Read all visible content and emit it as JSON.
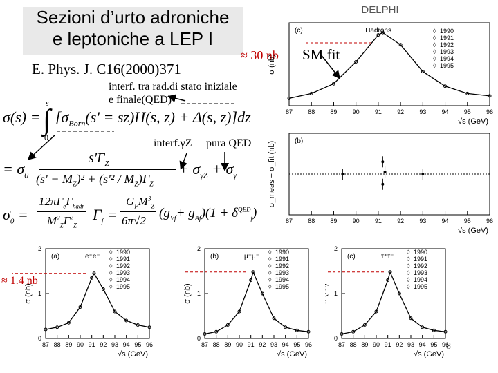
{
  "slide": {
    "title_line1": "Sezioni d’urto adroniche",
    "title_line2": "e leptoniche a LEP I",
    "reference": "E. Phys. J. C16(2000)371",
    "annot_30nb": "≈ 30 nb",
    "annot_smfit": "SM fit",
    "annot_isr_line1": "interf. tra rad.di stato iniziale",
    "annot_isr_line2": "e finale(QED)",
    "annot_interf": "interf.γZ",
    "annot_pure_qed": "pura QED",
    "annot_14nb": "≈ 1.4 nb",
    "page_number": "8"
  },
  "formula": {
    "sigma_s": "σ(s) =",
    "integral_upper": "s",
    "integral_lower": "0",
    "integrand_1": "[σ",
    "born_sub": "Born",
    "integrand_2": "(s' = sz)H(s, z) + Δ(s, z)]dz",
    "line2_a": "= σ",
    "line2_sub0": "0",
    "line2_num": "s'Γ",
    "line2_den": "(s' − M",
    "line2_den2": ")² + (s'² / M",
    "line2_den3": ")Γ",
    "line2_tail": "+ σ",
    "sub_gz": "γZ",
    "line2_tail2": "+ σ",
    "sub_g": "γ",
    "sigma0_lhs": "σ",
    "sigma0_num": "12πΓ",
    "sigma0_num_sub": "e",
    "sigma0_num2": "Γ",
    "sigma0_num_sub2": "hadr",
    "sigma0_den": "M",
    "sigma0_den_b": "Γ",
    "gamma_f_lhs": "Γ",
    "gamma_f_sub": "f",
    "gamma_num": "G",
    "gamma_num_sub": "F",
    "gamma_num2": "M",
    "gamma_den": "6π√2",
    "gamma_tail": "(g",
    "gamma_tail_sub1": "Vf",
    "gamma_tail_mid": "+ g",
    "gamma_tail_sub2": "Af",
    "gamma_tail_end": ")(1 + δ",
    "gamma_tail_sup": "QED",
    "gamma_tail_sub3": "f",
    "gamma_close": ")"
  },
  "chart_data": [
    {
      "type": "scatter",
      "panel": "(c)",
      "experiment": "DELPHI",
      "label": "Hadrons",
      "ylabel": "σ (nb)",
      "xlabel": "√s (GeV)",
      "xlim": [
        87,
        96
      ],
      "x_ticks": [
        "87",
        "88",
        "89",
        "90",
        "91",
        "92",
        "93",
        "94",
        "95",
        "96"
      ],
      "legend": [
        "1990",
        "1991",
        "1992",
        "1993",
        "1994",
        "1995"
      ],
      "series": [
        {
          "name": "fit",
          "x": [
            87,
            88,
            89,
            90,
            91,
            91.2,
            92,
            93,
            94,
            95,
            96
          ],
          "y": [
            3,
            5,
            9,
            18,
            29,
            30,
            25,
            14,
            8,
            5,
            4
          ]
        }
      ]
    },
    {
      "type": "scatter",
      "panel": "(b)",
      "ylabel": "σ_meas − σ_fit (nb)",
      "xlabel": "√s (GeV)",
      "xlim": [
        87,
        96
      ],
      "x_ticks": [
        "87",
        "88",
        "89",
        "90",
        "91",
        "92",
        "93",
        "94",
        "95",
        "96"
      ],
      "series": [
        {
          "name": "residuals",
          "x": [
            89.4,
            91.2,
            91.2,
            91.3,
            93.0
          ],
          "y": [
            0.0,
            0.6,
            -0.5,
            0.1,
            0.0
          ]
        }
      ]
    },
    {
      "type": "scatter",
      "panel": "(a)",
      "label": "e⁺e⁻",
      "ylabel": "σ (nb)",
      "xlabel": "√s (GeV)",
      "xlim": [
        87,
        96
      ],
      "ylim": [
        0,
        2
      ],
      "y_ticks": [
        "0",
        "1",
        "2"
      ],
      "x_ticks": [
        "87",
        "88",
        "89",
        "90",
        "91",
        "92",
        "93",
        "94",
        "95",
        "96"
      ],
      "legend": [
        "1990",
        "1991",
        "1992",
        "1993",
        "1994",
        "1995"
      ],
      "series": [
        {
          "name": "fit",
          "x": [
            87,
            88,
            89,
            90,
            91,
            91.2,
            92,
            93,
            94,
            95,
            96
          ],
          "y": [
            0.2,
            0.25,
            0.35,
            0.7,
            1.35,
            1.45,
            1.1,
            0.6,
            0.4,
            0.3,
            0.25
          ]
        }
      ]
    },
    {
      "type": "scatter",
      "panel": "(b)",
      "label": "μ⁺μ⁻",
      "ylabel": "σ (nb)",
      "xlabel": "√s (GeV)",
      "xlim": [
        87,
        96
      ],
      "ylim": [
        0,
        2
      ],
      "y_ticks": [
        "0",
        "1",
        "2"
      ],
      "x_ticks": [
        "87",
        "88",
        "89",
        "90",
        "91",
        "92",
        "93",
        "94",
        "95",
        "96"
      ],
      "legend": [
        "1990",
        "1991",
        "1992",
        "1993",
        "1994",
        "1995"
      ],
      "series": [
        {
          "name": "fit",
          "x": [
            87,
            88,
            89,
            90,
            91,
            91.2,
            92,
            93,
            94,
            95,
            96
          ],
          "y": [
            0.1,
            0.15,
            0.3,
            0.6,
            1.3,
            1.48,
            1.0,
            0.45,
            0.25,
            0.18,
            0.15
          ]
        }
      ]
    },
    {
      "type": "scatter",
      "panel": "(c)",
      "label": "τ⁺τ⁻",
      "ylabel": "σ (nb)",
      "xlabel": "√s (GeV)",
      "xlim": [
        87,
        96
      ],
      "ylim": [
        0,
        2
      ],
      "y_ticks": [
        "0",
        "1",
        "2"
      ],
      "x_ticks": [
        "87",
        "88",
        "89",
        "90",
        "91",
        "92",
        "93",
        "94",
        "95",
        "96"
      ],
      "legend": [
        "1990",
        "1991",
        "1992",
        "1993",
        "1994",
        "1995"
      ],
      "series": [
        {
          "name": "fit",
          "x": [
            87,
            88,
            89,
            90,
            91,
            91.2,
            92,
            93,
            94,
            95,
            96
          ],
          "y": [
            0.1,
            0.15,
            0.3,
            0.6,
            1.3,
            1.48,
            1.0,
            0.45,
            0.25,
            0.18,
            0.15
          ]
        }
      ]
    }
  ]
}
